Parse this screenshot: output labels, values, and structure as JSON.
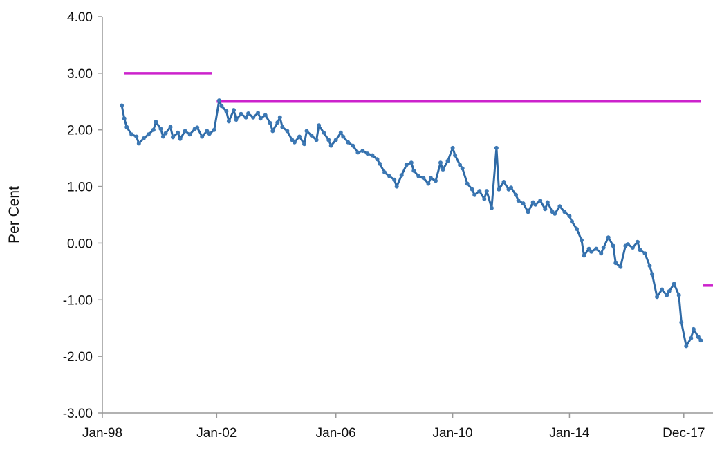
{
  "chart_data": {
    "type": "line",
    "ylabel": "Per Cent",
    "xlabel": "",
    "ylim": [
      -3.0,
      4.0
    ],
    "yticks": [
      "4.00",
      "3.00",
      "2.00",
      "1.00",
      "0.00",
      "-1.00",
      "-2.00",
      "-3.00"
    ],
    "xlim": [
      "1998-01",
      "2018-12"
    ],
    "xticks": [
      {
        "label": "Jan-98",
        "date": "1998-01"
      },
      {
        "label": "Jan-02",
        "date": "2001-12"
      },
      {
        "label": "Jan-06",
        "date": "2006-01"
      },
      {
        "label": "Jan-10",
        "date": "2010-01"
      },
      {
        "label": "Jan-14",
        "date": "2014-01"
      },
      {
        "label": "Dec-17",
        "date": "2017-12"
      }
    ],
    "grid": false,
    "colors": {
      "line": "#2f6aa6",
      "marker": "#3c78b4",
      "reference": "#cc22cc"
    },
    "series": [
      {
        "points": [
          [
            "1998-09",
            2.43
          ],
          [
            "1998-10",
            2.2
          ],
          [
            "1998-11",
            2.05
          ],
          [
            "1999-01",
            1.92
          ],
          [
            "1999-03",
            1.88
          ],
          [
            "1999-04",
            1.76
          ],
          [
            "1999-06",
            1.85
          ],
          [
            "1999-08",
            1.92
          ],
          [
            "1999-10",
            2.0
          ],
          [
            "1999-11",
            2.14
          ],
          [
            "2000-01",
            2.02
          ],
          [
            "2000-02",
            1.88
          ],
          [
            "2000-03",
            1.94
          ],
          [
            "2000-05",
            2.05
          ],
          [
            "2000-06",
            1.87
          ],
          [
            "2000-08",
            1.95
          ],
          [
            "2000-09",
            1.84
          ],
          [
            "2000-11",
            1.98
          ],
          [
            "2001-01",
            1.92
          ],
          [
            "2001-03",
            2.02
          ],
          [
            "2001-04",
            2.04
          ],
          [
            "2001-06",
            1.88
          ],
          [
            "2001-08",
            1.98
          ],
          [
            "2001-09",
            1.93
          ],
          [
            "2001-11",
            2.0
          ],
          [
            "2002-01",
            2.52
          ],
          [
            "2002-02",
            2.42
          ],
          [
            "2002-04",
            2.33
          ],
          [
            "2002-05",
            2.15
          ],
          [
            "2002-07",
            2.35
          ],
          [
            "2002-08",
            2.18
          ],
          [
            "2002-10",
            2.28
          ],
          [
            "2002-12",
            2.22
          ],
          [
            "2003-01",
            2.29
          ],
          [
            "2003-03",
            2.22
          ],
          [
            "2003-05",
            2.3
          ],
          [
            "2003-06",
            2.2
          ],
          [
            "2003-08",
            2.26
          ],
          [
            "2003-10",
            2.12
          ],
          [
            "2003-11",
            1.98
          ],
          [
            "2004-01",
            2.13
          ],
          [
            "2004-02",
            2.22
          ],
          [
            "2004-03",
            2.05
          ],
          [
            "2004-05",
            1.98
          ],
          [
            "2004-07",
            1.82
          ],
          [
            "2004-08",
            1.78
          ],
          [
            "2004-10",
            1.88
          ],
          [
            "2004-12",
            1.75
          ],
          [
            "2005-01",
            1.98
          ],
          [
            "2005-03",
            1.9
          ],
          [
            "2005-05",
            1.82
          ],
          [
            "2005-06",
            2.08
          ],
          [
            "2005-08",
            1.95
          ],
          [
            "2005-10",
            1.82
          ],
          [
            "2005-11",
            1.72
          ],
          [
            "2006-01",
            1.82
          ],
          [
            "2006-03",
            1.95
          ],
          [
            "2006-04",
            1.88
          ],
          [
            "2006-06",
            1.78
          ],
          [
            "2006-08",
            1.72
          ],
          [
            "2006-10",
            1.6
          ],
          [
            "2006-12",
            1.63
          ],
          [
            "2007-02",
            1.58
          ],
          [
            "2007-04",
            1.55
          ],
          [
            "2007-06",
            1.48
          ],
          [
            "2007-07",
            1.4
          ],
          [
            "2007-09",
            1.25
          ],
          [
            "2007-11",
            1.18
          ],
          [
            "2008-01",
            1.12
          ],
          [
            "2008-02",
            1.0
          ],
          [
            "2008-04",
            1.2
          ],
          [
            "2008-06",
            1.38
          ],
          [
            "2008-08",
            1.42
          ],
          [
            "2008-09",
            1.28
          ],
          [
            "2008-11",
            1.18
          ],
          [
            "2009-01",
            1.15
          ],
          [
            "2009-03",
            1.05
          ],
          [
            "2009-04",
            1.15
          ],
          [
            "2009-06",
            1.1
          ],
          [
            "2009-08",
            1.42
          ],
          [
            "2009-09",
            1.3
          ],
          [
            "2009-11",
            1.45
          ],
          [
            "2010-01",
            1.68
          ],
          [
            "2010-02",
            1.55
          ],
          [
            "2010-04",
            1.38
          ],
          [
            "2010-05",
            1.32
          ],
          [
            "2010-07",
            1.05
          ],
          [
            "2010-09",
            0.95
          ],
          [
            "2010-10",
            0.85
          ],
          [
            "2010-12",
            0.92
          ],
          [
            "2011-02",
            0.78
          ],
          [
            "2011-03",
            0.92
          ],
          [
            "2011-05",
            0.62
          ],
          [
            "2011-07",
            1.68
          ],
          [
            "2011-08",
            0.95
          ],
          [
            "2011-10",
            1.08
          ],
          [
            "2011-12",
            0.95
          ],
          [
            "2012-01",
            0.98
          ],
          [
            "2012-03",
            0.85
          ],
          [
            "2012-04",
            0.75
          ],
          [
            "2012-06",
            0.7
          ],
          [
            "2012-08",
            0.55
          ],
          [
            "2012-10",
            0.72
          ],
          [
            "2012-11",
            0.68
          ],
          [
            "2013-01",
            0.75
          ],
          [
            "2013-03",
            0.6
          ],
          [
            "2013-04",
            0.72
          ],
          [
            "2013-06",
            0.55
          ],
          [
            "2013-07",
            0.52
          ],
          [
            "2013-09",
            0.65
          ],
          [
            "2013-11",
            0.55
          ],
          [
            "2014-01",
            0.48
          ],
          [
            "2014-02",
            0.38
          ],
          [
            "2014-04",
            0.25
          ],
          [
            "2014-06",
            0.05
          ],
          [
            "2014-07",
            -0.22
          ],
          [
            "2014-09",
            -0.1
          ],
          [
            "2014-10",
            -0.15
          ],
          [
            "2014-12",
            -0.1
          ],
          [
            "2015-02",
            -0.18
          ],
          [
            "2015-03",
            -0.08
          ],
          [
            "2015-05",
            0.1
          ],
          [
            "2015-07",
            -0.05
          ],
          [
            "2015-08",
            -0.35
          ],
          [
            "2015-10",
            -0.42
          ],
          [
            "2015-12",
            -0.05
          ],
          [
            "2016-01",
            -0.02
          ],
          [
            "2016-03",
            -0.08
          ],
          [
            "2016-05",
            0.02
          ],
          [
            "2016-06",
            -0.12
          ],
          [
            "2016-08",
            -0.18
          ],
          [
            "2016-10",
            -0.4
          ],
          [
            "2016-11",
            -0.55
          ],
          [
            "2017-01",
            -0.95
          ],
          [
            "2017-03",
            -0.82
          ],
          [
            "2017-05",
            -0.92
          ],
          [
            "2017-06",
            -0.85
          ],
          [
            "2017-08",
            -0.72
          ],
          [
            "2017-10",
            -0.92
          ],
          [
            "2017-11",
            -1.4
          ],
          [
            "2018-01",
            -1.82
          ],
          [
            "2018-03",
            -1.68
          ],
          [
            "2018-04",
            -1.52
          ],
          [
            "2018-06",
            -1.66
          ],
          [
            "2018-07",
            -1.72
          ]
        ]
      }
    ],
    "reference_lines": [
      {
        "y": 3.0,
        "x_start": "1998-10",
        "x_end": "2001-10"
      },
      {
        "y": 2.5,
        "x_start": "2001-12",
        "x_end": "2018-07"
      },
      {
        "y": -0.75,
        "x_start": "2018-08",
        "x_end": "2018-12"
      }
    ]
  }
}
